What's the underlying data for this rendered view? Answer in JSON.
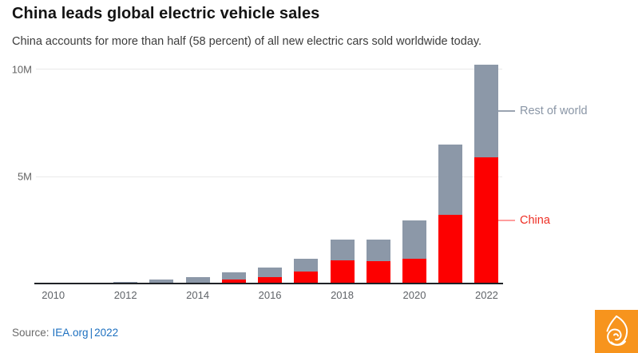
{
  "chart_data": {
    "type": "bar",
    "stacked": true,
    "title": "China leads global electric vehicle sales",
    "subtitle": "China accounts for more than half (58 percent) of all new electric cars sold worldwide today.",
    "value_unit": "millions of vehicles",
    "x": [
      "2010",
      "2011",
      "2012",
      "2013",
      "2014",
      "2015",
      "2016",
      "2017",
      "2018",
      "2019",
      "2020",
      "2021",
      "2022"
    ],
    "x_tick_labels": [
      "2010",
      "2012",
      "2014",
      "2016",
      "2018",
      "2020",
      "2022"
    ],
    "yticks": [
      {
        "value": 5,
        "label": "5M"
      },
      {
        "value": 10,
        "label": "10M"
      }
    ],
    "ylim": [
      0,
      10.5
    ],
    "grid": "horizontal",
    "legend_position": "right-annotations",
    "series": [
      {
        "name": "China",
        "color": "#fd0000",
        "label_color": "#ee2e24",
        "callout_line_color": "#ff9d9d",
        "values": [
          0.001,
          0.005,
          0.011,
          0.016,
          0.07,
          0.21,
          0.33,
          0.58,
          1.08,
          1.06,
          1.16,
          3.2,
          5.9
        ]
      },
      {
        "name": "Rest of world",
        "color": "#8c98a8",
        "label_color": "#8a96a6",
        "callout_line_color": "#9aa3b1",
        "values": [
          0.006,
          0.04,
          0.1,
          0.18,
          0.25,
          0.33,
          0.42,
          0.6,
          0.98,
          1.0,
          1.8,
          3.3,
          4.3
        ]
      }
    ],
    "totals": [
      0.007,
      0.045,
      0.111,
      0.196,
      0.32,
      0.54,
      0.75,
      1.18,
      2.06,
      2.06,
      2.96,
      6.5,
      10.2
    ]
  },
  "footer": {
    "source_prefix": "Source:",
    "source_link_1": "IEA.org",
    "separator": "|",
    "source_link_2": "2022"
  },
  "logo": {
    "label": "Al Jazeera",
    "background": "#f7941d",
    "glyph_color": "#ffffff"
  }
}
